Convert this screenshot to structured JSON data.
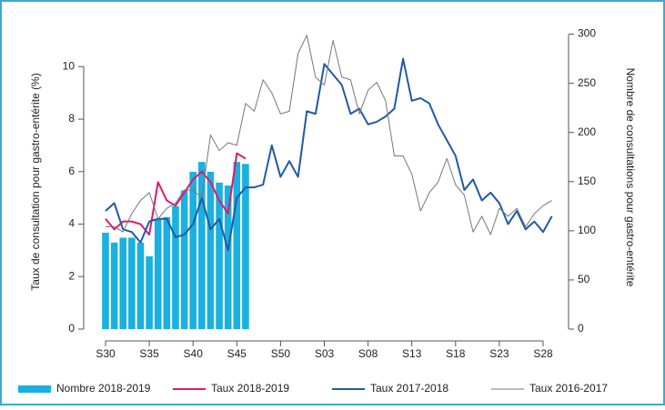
{
  "chart_data": {
    "type": "combo",
    "y_label": "Taux de consultation pour gastro-entérite (%)",
    "y2_label": "Nombre de consultations pour gastro-entérite",
    "categories": [
      "S30",
      null,
      null,
      null,
      null,
      "S35",
      null,
      null,
      null,
      null,
      "S40",
      null,
      null,
      null,
      null,
      "S45",
      null,
      null,
      null,
      null,
      "S50",
      null,
      null,
      null,
      null,
      "S03",
      null,
      null,
      null,
      null,
      "S08",
      null,
      null,
      null,
      null,
      "S13",
      null,
      null,
      null,
      null,
      "S18",
      null,
      null,
      null,
      null,
      "S23",
      null,
      null,
      null,
      null,
      "S28",
      null
    ],
    "ylim": [
      0,
      11.5
    ],
    "yticks": [
      0,
      2,
      4,
      6,
      8,
      10
    ],
    "y2lim": [
      0,
      307
    ],
    "y2ticks": [
      0,
      50,
      100,
      150,
      200,
      250,
      300
    ],
    "series": [
      {
        "name": "Nombre 2018-2019",
        "type": "bar",
        "axis": "y2",
        "color": "#1ab0e0",
        "values": [
          98,
          88,
          93,
          93,
          88,
          74,
          112,
          114,
          125,
          141,
          160,
          170,
          160,
          149,
          146,
          170,
          168,
          null,
          null,
          null,
          null,
          null,
          null,
          null,
          null,
          null,
          null,
          null,
          null,
          null,
          null,
          null,
          null,
          null,
          null,
          null,
          null,
          null,
          null,
          null,
          null,
          null,
          null,
          null,
          null,
          null,
          null,
          null,
          null,
          null,
          null,
          null
        ]
      },
      {
        "name": "Taux 2018-2019",
        "type": "line",
        "color": "#e0196a",
        "values": [
          4.2,
          3.8,
          4.1,
          4.1,
          4.0,
          3.6,
          5.6,
          4.9,
          4.7,
          5.2,
          5.7,
          6.0,
          5.6,
          4.9,
          4.4,
          6.7,
          6.5,
          null,
          null,
          null,
          null,
          null,
          null,
          null,
          null,
          null,
          null,
          null,
          null,
          null,
          null,
          null,
          null,
          null,
          null,
          null,
          null,
          null,
          null,
          null,
          null,
          null,
          null,
          null,
          null,
          null,
          null,
          null,
          null,
          null,
          null,
          null
        ]
      },
      {
        "name": "Taux 2017-2018",
        "type": "line",
        "color": "#1f5aa6",
        "values": [
          4.5,
          4.8,
          3.8,
          3.7,
          3.3,
          4.1,
          4.2,
          4.2,
          3.5,
          3.6,
          4.0,
          5.0,
          3.8,
          4.2,
          3.0,
          5.0,
          5.4,
          5.4,
          5.5,
          7.0,
          5.8,
          6.4,
          5.8,
          8.3,
          8.2,
          10.1,
          9.7,
          9.3,
          8.2,
          8.4,
          7.8,
          7.9,
          8.1,
          8.4,
          10.3,
          8.7,
          8.8,
          8.6,
          7.8,
          7.2,
          6.6,
          5.3,
          5.7,
          4.9,
          5.2,
          4.8,
          4.0,
          4.5,
          3.8,
          4.1,
          3.7,
          4.3
        ]
      },
      {
        "name": "Taux 2016-2017",
        "type": "line",
        "color": "#777777",
        "values": [
          3.9,
          3.9,
          3.7,
          4.4,
          4.9,
          5.2,
          4.2,
          4.6,
          4.8,
          5.3,
          5.3,
          5.0,
          7.4,
          6.8,
          7.1,
          7.0,
          8.6,
          8.3,
          9.5,
          9.0,
          8.2,
          8.3,
          10.5,
          11.2,
          9.6,
          9.3,
          11.0,
          9.6,
          9.5,
          8.2,
          9.1,
          9.4,
          8.7,
          6.6,
          6.6,
          5.9,
          4.5,
          5.2,
          5.6,
          6.5,
          5.5,
          5.1,
          3.7,
          4.3,
          3.6,
          4.6,
          4.3,
          4.6,
          3.9,
          4.4,
          4.7,
          4.9
        ]
      }
    ]
  }
}
